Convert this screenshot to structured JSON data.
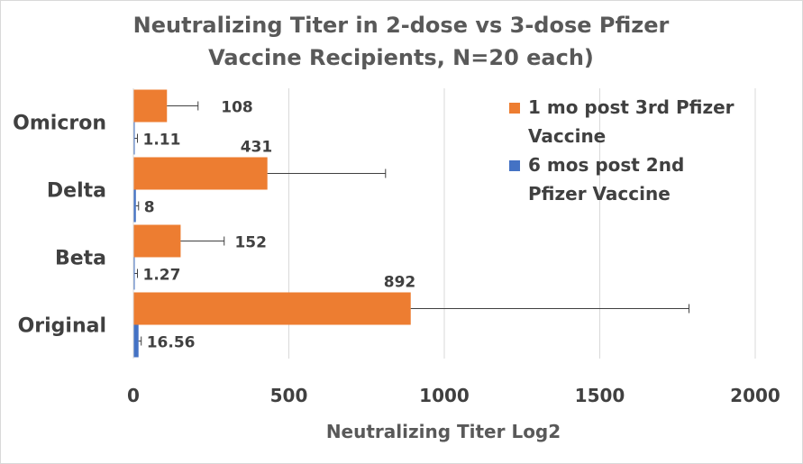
{
  "chart_data": {
    "type": "bar",
    "orientation": "horizontal",
    "title": "Neutralizing Titer in 2-dose vs 3-dose Pfizer Vaccine Recipients, N=20 each)",
    "title_lines": [
      "Neutralizing Titer in 2-dose vs 3-dose Pfizer",
      "Vaccine Recipients, N=20 each)"
    ],
    "xlabel": "Neutralizing Titer Log2",
    "ylabel": "",
    "categories": [
      "Original",
      "Beta",
      "Delta",
      "Omicron"
    ],
    "xlim": [
      0,
      2000
    ],
    "xticks": [
      0,
      500,
      1000,
      1500,
      2000
    ],
    "grid": "vertical",
    "legend_position": "right",
    "series": [
      {
        "name": "1 mo post 3rd Pfizer Vaccine",
        "legend_lines": [
          "1 mo post 3rd Pfizer",
          "Vaccine"
        ],
        "color": "#ed7d31",
        "values": [
          892,
          152,
          431,
          108
        ],
        "error": [
          895,
          140,
          380,
          100
        ],
        "labels": [
          "892",
          "152",
          "431",
          "108"
        ]
      },
      {
        "name": "6 mos post 2nd Pfizer Vaccine",
        "legend_lines": [
          "6 mos post 2nd",
          "Pfizer Vaccine"
        ],
        "color": "#4472c4",
        "values": [
          16.56,
          1.27,
          8,
          1.11
        ],
        "error": [
          6,
          1,
          3,
          1
        ],
        "labels": [
          "16.56",
          "1.27",
          "8",
          "1.11"
        ]
      }
    ]
  }
}
